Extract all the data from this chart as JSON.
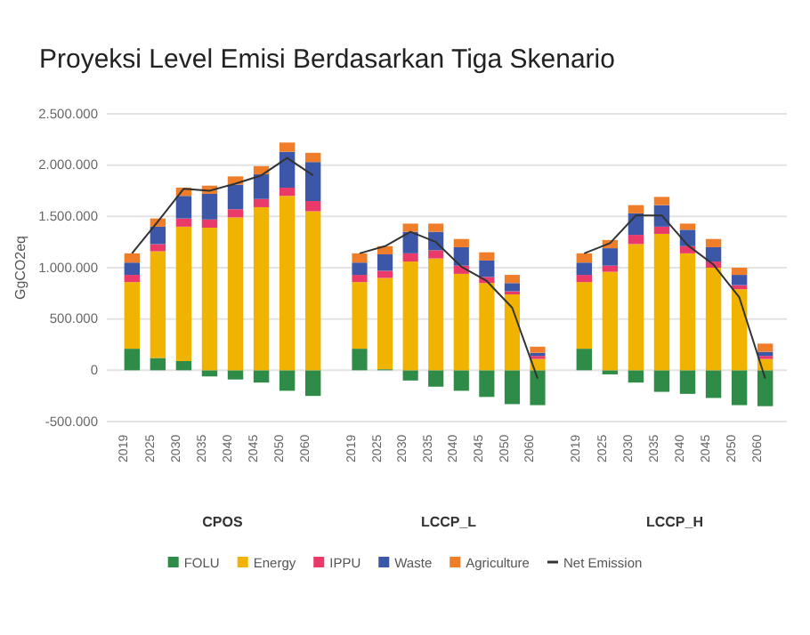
{
  "chart_data": [
    {
      "type": "bar",
      "stacked": true,
      "title": "Proyeksi Level Emisi Berdasarkan Tiga Skenario",
      "ylabel": "GgCO2eq",
      "xlabel": "CPOS",
      "categories": [
        "2019",
        "2025",
        "2030",
        "2035",
        "2040",
        "2045",
        "2050",
        "2060"
      ],
      "ylim": [
        -500000,
        2500000
      ],
      "yticks": [
        {
          "value": -500000,
          "label": "-500.000"
        },
        {
          "value": 0,
          "label": "0"
        },
        {
          "value": 500000,
          "label": "500.000"
        },
        {
          "value": 1000000,
          "label": "1.000.000"
        },
        {
          "value": 1500000,
          "label": "1.500.000"
        },
        {
          "value": 2000000,
          "label": "2.000.000"
        },
        {
          "value": 2500000,
          "label": "2.500.000"
        }
      ],
      "grid": "y",
      "legend": "bottom",
      "series": [
        {
          "name": "FOLU",
          "color": "#2e8b48",
          "values": [
            210000,
            120000,
            90000,
            -60000,
            -90000,
            -120000,
            -200000,
            -250000
          ]
        },
        {
          "name": "Energy",
          "color": "#f0b400",
          "values": [
            650000,
            1040000,
            1310000,
            1390000,
            1490000,
            1590000,
            1700000,
            1550000
          ]
        },
        {
          "name": "IPPU",
          "color": "#ea3a6a",
          "values": [
            70000,
            70000,
            80000,
            80000,
            80000,
            80000,
            80000,
            100000
          ]
        },
        {
          "name": "Waste",
          "color": "#3c57a8",
          "values": [
            120000,
            170000,
            220000,
            250000,
            240000,
            240000,
            350000,
            380000
          ]
        },
        {
          "name": "Agriculture",
          "color": "#ef7d2a",
          "values": [
            90000,
            80000,
            80000,
            80000,
            80000,
            80000,
            90000,
            90000
          ]
        },
        {
          "name": "Net Emission",
          "type": "line",
          "marker": "none",
          "color": "#333333",
          "values": [
            1140000,
            1450000,
            1770000,
            1750000,
            1820000,
            1900000,
            2070000,
            1900000
          ]
        }
      ]
    },
    {
      "type": "bar",
      "stacked": true,
      "xlabel": "LCCP_L",
      "categories": [
        "2019",
        "2025",
        "2030",
        "2035",
        "2040",
        "2045",
        "2050",
        "2060"
      ],
      "ylim": [
        -500000,
        2500000
      ],
      "yticks": [
        {
          "value": -500000,
          "label": null
        },
        {
          "value": 0,
          "label": null
        },
        {
          "value": 500000,
          "label": null
        },
        {
          "value": 1000000,
          "label": null
        },
        {
          "value": 1500000,
          "label": null
        },
        {
          "value": 2000000,
          "label": null
        },
        {
          "value": 2500000,
          "label": null
        }
      ],
      "tick_labels": "x",
      "grid": "y",
      "series": [
        {
          "color": "#2e8b48",
          "values": [
            210000,
            10000,
            -100000,
            -160000,
            -200000,
            -260000,
            -330000,
            -340000
          ]
        },
        {
          "color": "#f0b400",
          "values": [
            650000,
            890000,
            1060000,
            1090000,
            940000,
            850000,
            740000,
            110000
          ]
        },
        {
          "color": "#ea3a6a",
          "values": [
            70000,
            70000,
            80000,
            80000,
            80000,
            60000,
            30000,
            30000
          ]
        },
        {
          "color": "#3c57a8",
          "values": [
            120000,
            160000,
            210000,
            180000,
            180000,
            160000,
            80000,
            30000
          ]
        },
        {
          "color": "#ef7d2a",
          "values": [
            90000,
            80000,
            80000,
            80000,
            80000,
            80000,
            80000,
            60000
          ]
        },
        {
          "type": "line",
          "marker": "none",
          "color": "#333333",
          "values": [
            1140000,
            1210000,
            1350000,
            1250000,
            1010000,
            870000,
            610000,
            -80000
          ]
        }
      ]
    },
    {
      "type": "bar",
      "stacked": true,
      "xlabel": "LCCP_H",
      "categories": [
        "2019",
        "2025",
        "2030",
        "2035",
        "2040",
        "2045",
        "2050",
        "2060"
      ],
      "ylim": [
        -500000,
        2500000
      ],
      "yticks": [
        {
          "value": -500000,
          "label": null
        },
        {
          "value": 0,
          "label": null
        },
        {
          "value": 500000,
          "label": null
        },
        {
          "value": 1000000,
          "label": null
        },
        {
          "value": 1500000,
          "label": null
        },
        {
          "value": 2000000,
          "label": null
        },
        {
          "value": 2500000,
          "label": null
        }
      ],
      "tick_labels": "x",
      "grid": "y",
      "series": [
        {
          "color": "#2e8b48",
          "values": [
            210000,
            -40000,
            -120000,
            -210000,
            -230000,
            -270000,
            -340000,
            -350000
          ]
        },
        {
          "color": "#f0b400",
          "values": [
            650000,
            960000,
            1230000,
            1330000,
            1140000,
            1000000,
            790000,
            110000
          ]
        },
        {
          "color": "#ea3a6a",
          "values": [
            70000,
            60000,
            90000,
            70000,
            70000,
            60000,
            40000,
            30000
          ]
        },
        {
          "color": "#3c57a8",
          "values": [
            120000,
            170000,
            210000,
            210000,
            160000,
            140000,
            100000,
            40000
          ]
        },
        {
          "color": "#ef7d2a",
          "values": [
            90000,
            80000,
            80000,
            80000,
            60000,
            80000,
            70000,
            80000
          ]
        },
        {
          "type": "line",
          "marker": "none",
          "color": "#333333",
          "values": [
            1140000,
            1240000,
            1510000,
            1510000,
            1220000,
            1030000,
            710000,
            -80000
          ]
        }
      ]
    }
  ]
}
